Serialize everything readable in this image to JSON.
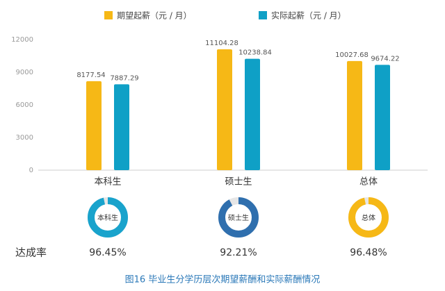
{
  "caption": "图16 毕业生分学历层次期望薪酬和实际薪酬情况",
  "chart_data": [
    {
      "type": "bar",
      "categories": [
        "本科生",
        "硕士生",
        "总体"
      ],
      "series": [
        {
          "name": "期望起薪（元 / 月）",
          "color": "#f6b816",
          "values": [
            8177.54,
            11104.28,
            10027.68
          ]
        },
        {
          "name": "实际起薪（元 / 月）",
          "color": "#0fa0c6",
          "values": [
            7887.29,
            10238.84,
            9674.22
          ]
        }
      ],
      "ylim": [
        0,
        12000
      ],
      "yticks": [
        0,
        3000,
        6000,
        9000,
        12000
      ],
      "grid": false,
      "legend": "top"
    },
    {
      "type": "donut",
      "title": "达成率",
      "categories": [
        "本科生",
        "硕士生",
        "总体"
      ],
      "values": [
        96.45,
        92.21,
        96.48
      ],
      "value_labels": [
        "96.45%",
        "92.21%",
        "96.48%"
      ],
      "colors": [
        "#19a3cc",
        "#2f6fae",
        "#f6b816"
      ]
    }
  ]
}
